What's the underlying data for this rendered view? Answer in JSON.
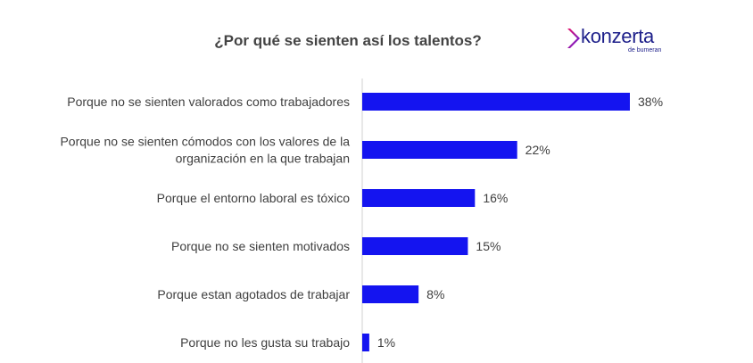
{
  "title": "¿Por qué se sienten así los talentos?",
  "logo": {
    "wordmark": "konzerta",
    "subtitle": "de bumeran",
    "color": "#1d1f8a"
  },
  "chart_data": {
    "type": "bar",
    "orientation": "horizontal",
    "title": "¿Por qué se sienten así los talentos?",
    "categories": [
      [
        "Porque no se sienten valorados como trabajadores"
      ],
      [
        "Porque no se sienten cómodos con los valores de la",
        "organización en la que trabajan"
      ],
      [
        "Porque el entorno laboral es tóxico"
      ],
      [
        "Porque no se sienten motivados"
      ],
      [
        "Porque estan agotados de trabajar"
      ],
      [
        "Porque no les gusta su trabajo"
      ]
    ],
    "values": [
      38,
      22,
      16,
      15,
      8,
      1
    ],
    "value_labels": [
      "38%",
      "22%",
      "16%",
      "15%",
      "8%",
      "1%"
    ],
    "xlim": [
      0,
      38
    ],
    "bar_color": "#1414f0",
    "grid": false,
    "legend": "none"
  }
}
